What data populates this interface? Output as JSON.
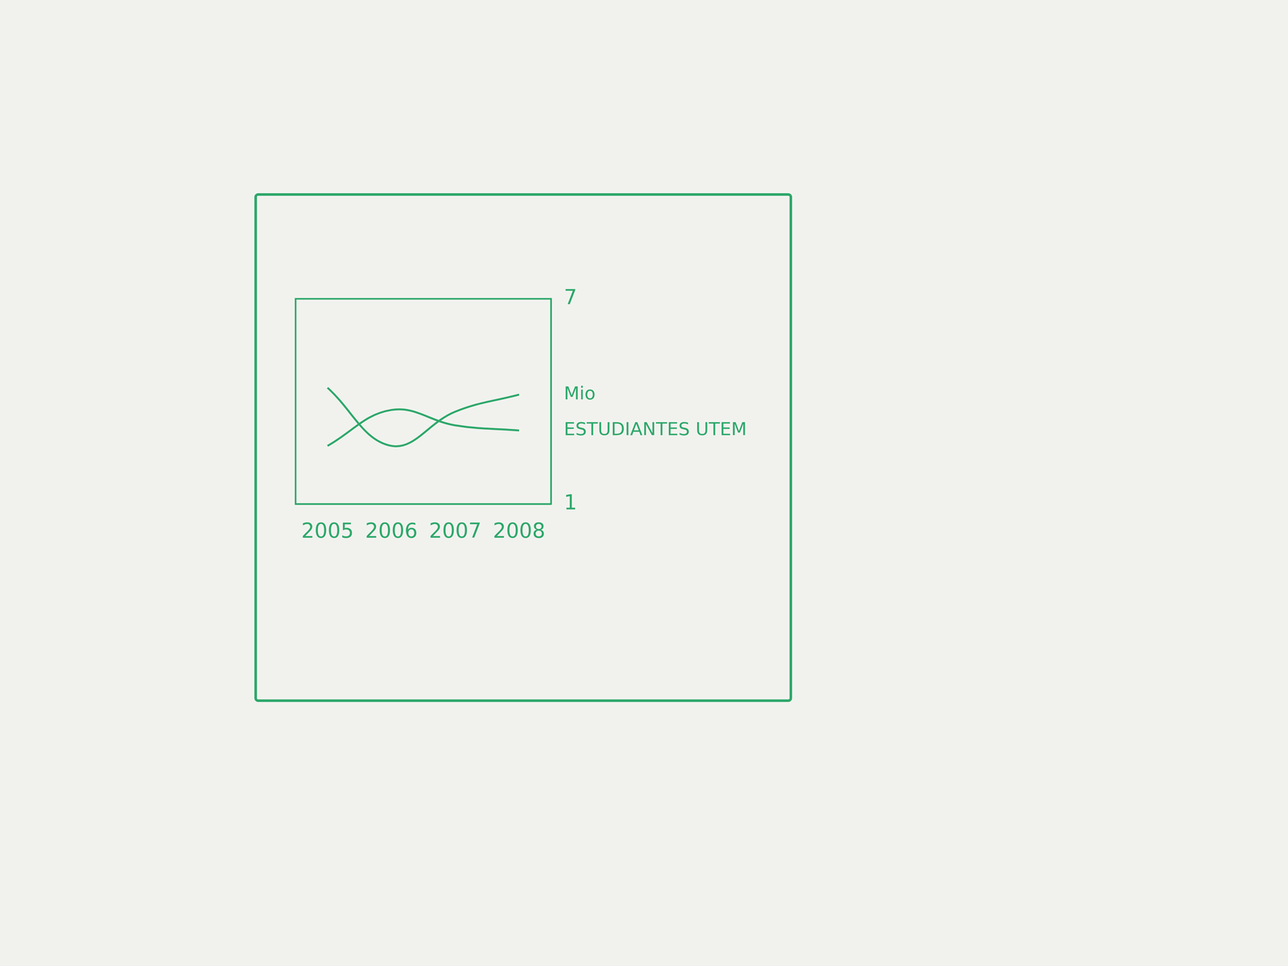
{
  "chart_data": {
    "type": "line",
    "categories": [
      "2005",
      "2006",
      "2007",
      "2008"
    ],
    "series": [
      {
        "name": "Mio",
        "color": "#2ea86b",
        "values": [
          4.4,
          2.7,
          3.7,
          4.2
        ]
      },
      {
        "name": "ESTUDIANTES UTEM",
        "color": "#2ea86b",
        "values": [
          2.7,
          3.75,
          3.3,
          3.15
        ]
      }
    ],
    "ylim": [
      1,
      7
    ],
    "yticks": [
      1,
      7
    ],
    "grid": false
  }
}
